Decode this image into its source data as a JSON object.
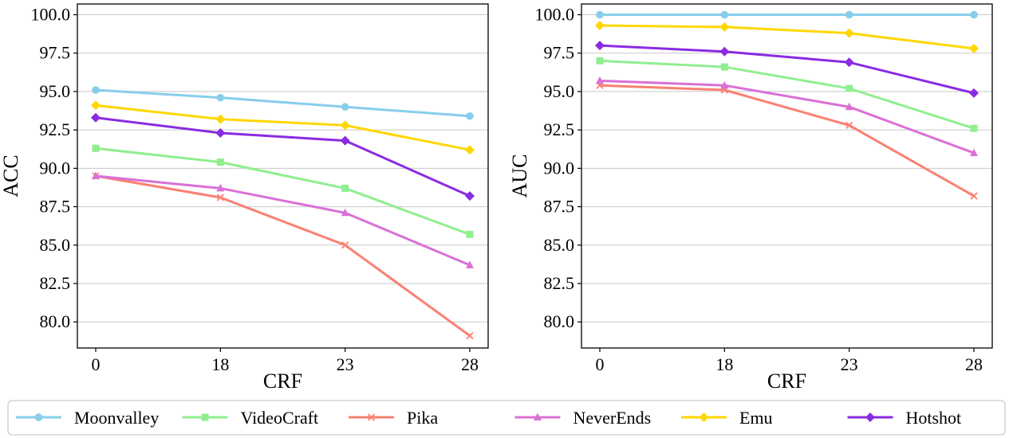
{
  "chart_data": [
    {
      "type": "line",
      "title": "",
      "xlabel": "CRF",
      "ylabel": "ACC",
      "categories": [
        "0",
        "18",
        "23",
        "28"
      ],
      "ylim": [
        78.3,
        100.7
      ],
      "yticks": [
        "80.0",
        "82.5",
        "85.0",
        "87.5",
        "90.0",
        "92.5",
        "95.0",
        "97.5",
        "100.0"
      ],
      "grid": "horizontal",
      "series": [
        {
          "name": "Moonvalley",
          "color": "#87ceeb",
          "marker": "circle",
          "values": [
            95.1,
            94.6,
            94.0,
            93.4
          ]
        },
        {
          "name": "VideoCraft",
          "color": "#90ee90",
          "marker": "square",
          "values": [
            91.3,
            90.4,
            88.7,
            85.7
          ]
        },
        {
          "name": "Pika",
          "color": "#fa8072",
          "marker": "x",
          "values": [
            89.5,
            88.1,
            85.0,
            79.1
          ]
        },
        {
          "name": "NeverEnds",
          "color": "#da70d6",
          "marker": "triangle",
          "values": [
            89.5,
            88.7,
            87.1,
            83.7
          ]
        },
        {
          "name": "Emu",
          "color": "#ffd700",
          "marker": "diamond",
          "values": [
            94.1,
            93.2,
            92.8,
            91.2
          ]
        },
        {
          "name": "Hotshot",
          "color": "#8a2be2",
          "marker": "diamond",
          "values": [
            93.3,
            92.3,
            91.8,
            88.2
          ]
        }
      ]
    },
    {
      "type": "line",
      "title": "",
      "xlabel": "CRF",
      "ylabel": "AUC",
      "categories": [
        "0",
        "18",
        "23",
        "28"
      ],
      "ylim": [
        78.3,
        100.7
      ],
      "yticks": [
        "80.0",
        "82.5",
        "85.0",
        "87.5",
        "90.0",
        "92.5",
        "95.0",
        "97.5",
        "100.0"
      ],
      "grid": "horizontal",
      "series": [
        {
          "name": "Moonvalley",
          "color": "#87ceeb",
          "marker": "circle",
          "values": [
            100.0,
            100.0,
            100.0,
            100.0
          ]
        },
        {
          "name": "VideoCraft",
          "color": "#90ee90",
          "marker": "square",
          "values": [
            97.0,
            96.6,
            95.2,
            92.6
          ]
        },
        {
          "name": "Pika",
          "color": "#fa8072",
          "marker": "x",
          "values": [
            95.4,
            95.1,
            92.8,
            88.2
          ]
        },
        {
          "name": "NeverEnds",
          "color": "#da70d6",
          "marker": "triangle",
          "values": [
            95.7,
            95.4,
            94.0,
            91.0
          ]
        },
        {
          "name": "Emu",
          "color": "#ffd700",
          "marker": "diamond",
          "values": [
            99.3,
            99.2,
            98.8,
            97.8
          ]
        },
        {
          "name": "Hotshot",
          "color": "#8a2be2",
          "marker": "diamond",
          "values": [
            98.0,
            97.6,
            96.9,
            94.9
          ]
        }
      ]
    }
  ],
  "legend": {
    "placement": "bottom",
    "entries": [
      "Moonvalley",
      "VideoCraft",
      "Pika",
      "NeverEnds",
      "Emu",
      "Hotshot"
    ]
  }
}
